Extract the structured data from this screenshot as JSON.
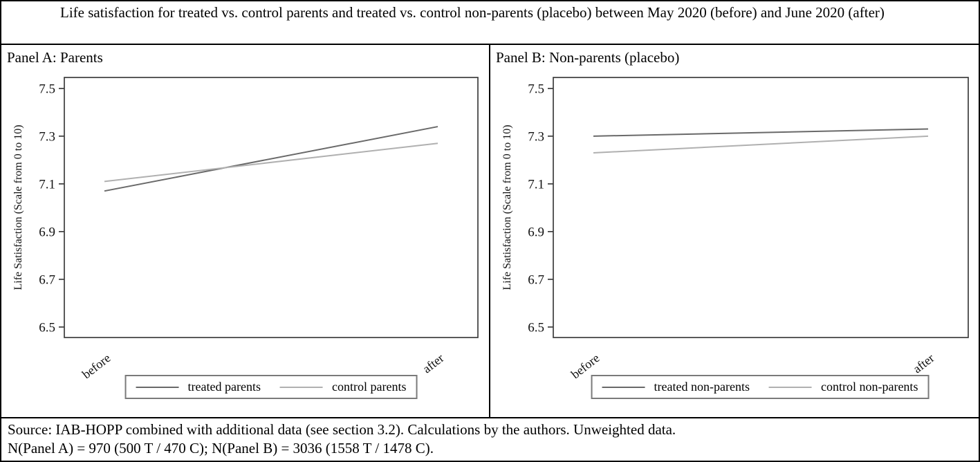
{
  "figure": {
    "title": "Life satisfaction for treated vs. control parents and treated vs. control non-parents (placebo) between May 2020 (before) and June 2020 (after)"
  },
  "colors": {
    "treated_line": "#696969",
    "control_line": "#b0b0b0",
    "axis": "#3c3c3c",
    "tick_text": "#111111",
    "legend_border": "#7a7a7a"
  },
  "chart_data": [
    {
      "type": "line",
      "panel": "Panel A: Parents",
      "x": [
        "before",
        "after"
      ],
      "series": [
        {
          "name": "treated parents",
          "values": [
            7.07,
            7.34
          ],
          "color": "#696969"
        },
        {
          "name": "control parents",
          "values": [
            7.11,
            7.27
          ],
          "color": "#b0b0b0"
        }
      ],
      "ylabel": "Life Satisfaction (Scale from 0 to 10)",
      "yticks": [
        6.5,
        6.7,
        6.9,
        7.1,
        7.3,
        7.5
      ],
      "ylim": [
        6.456,
        7.546
      ],
      "grid": false,
      "legend_position": "bottom"
    },
    {
      "type": "line",
      "panel": "Panel B: Non-parents (placebo)",
      "x": [
        "before",
        "after"
      ],
      "series": [
        {
          "name": "treated non-parents",
          "values": [
            7.3,
            7.33
          ],
          "color": "#696969"
        },
        {
          "name": "control non-parents",
          "values": [
            7.23,
            7.3
          ],
          "color": "#b0b0b0"
        }
      ],
      "ylabel": "Life Satisfaction (Scale from 0 to 10)",
      "yticks": [
        6.5,
        6.7,
        6.9,
        7.1,
        7.3,
        7.5
      ],
      "ylim": [
        6.456,
        7.546
      ],
      "grid": false,
      "legend_position": "bottom"
    }
  ],
  "source": {
    "line1": "Source: IAB-HOPP combined with additional data (see section 3.2). Calculations by the authors. Unweighted data.",
    "line2": "N(Panel A) = 970 (500 T / 470 C); N(Panel B) = 3036 (1558 T / 1478 C)."
  }
}
